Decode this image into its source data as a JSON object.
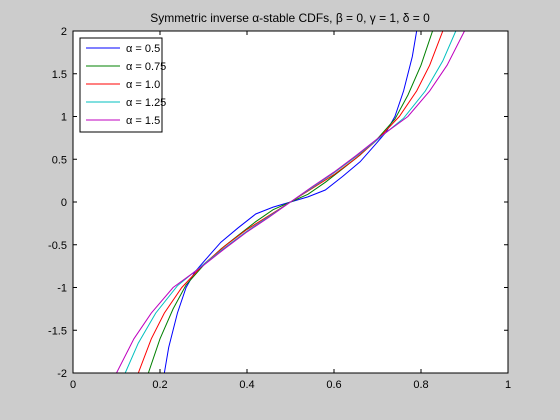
{
  "chart_data": {
    "type": "line",
    "title": "Symmetric inverse α-stable CDFs, β = 0, γ = 1, δ = 0",
    "xlabel": "",
    "ylabel": "",
    "xlim": [
      0,
      1
    ],
    "ylim": [
      -2,
      2
    ],
    "x_ticks": [
      "0",
      "0.2",
      "0.4",
      "0.6",
      "0.8",
      "1"
    ],
    "y_ticks": [
      "-2",
      "-1.5",
      "-1",
      "-0.5",
      "0",
      "0.5",
      "1",
      "1.5",
      "2"
    ],
    "x_tick_values": [
      0,
      0.2,
      0.4,
      0.6,
      0.8,
      1
    ],
    "y_tick_values": [
      -2,
      -1.5,
      -1,
      -0.5,
      0,
      0.5,
      1,
      1.5,
      2
    ],
    "grid": false,
    "legend_position": "top-left",
    "series": [
      {
        "name": "α = 0.5",
        "color": "#0000ff",
        "x": [
          0.2,
          0.22,
          0.24,
          0.26,
          0.28,
          0.3,
          0.34,
          0.38,
          0.42,
          0.46,
          0.5,
          0.54,
          0.58,
          0.62,
          0.66,
          0.7,
          0.72,
          0.74,
          0.76,
          0.78,
          0.8
        ],
        "y": [
          -2.3,
          -1.7,
          -1.3,
          -1.0,
          -0.82,
          -0.7,
          -0.47,
          -0.3,
          -0.14,
          -0.06,
          0.0,
          0.06,
          0.14,
          0.3,
          0.47,
          0.7,
          0.82,
          1.0,
          1.3,
          1.7,
          2.3
        ]
      },
      {
        "name": "α = 0.75",
        "color": "#008000",
        "x": [
          0.17,
          0.2,
          0.23,
          0.26,
          0.3,
          0.34,
          0.38,
          0.42,
          0.46,
          0.5,
          0.54,
          0.58,
          0.62,
          0.66,
          0.7,
          0.74,
          0.77,
          0.8,
          0.83
        ],
        "y": [
          -2.05,
          -1.6,
          -1.25,
          -0.97,
          -0.74,
          -0.55,
          -0.39,
          -0.23,
          -0.09,
          0.0,
          0.09,
          0.23,
          0.39,
          0.55,
          0.74,
          0.97,
          1.25,
          1.6,
          2.05
        ]
      },
      {
        "name": "α = 1.0",
        "color": "#ff0000",
        "x": [
          0.15,
          0.18,
          0.21,
          0.25,
          0.3,
          0.35,
          0.4,
          0.45,
          0.5,
          0.55,
          0.6,
          0.65,
          0.7,
          0.75,
          0.79,
          0.82,
          0.85
        ],
        "y": [
          -2.0,
          -1.6,
          -1.3,
          -1.0,
          -0.73,
          -0.51,
          -0.32,
          -0.16,
          0.0,
          0.16,
          0.32,
          0.51,
          0.73,
          1.0,
          1.3,
          1.6,
          2.0
        ]
      },
      {
        "name": "α = 1.25",
        "color": "#00bfbf",
        "x": [
          0.12,
          0.15,
          0.19,
          0.24,
          0.3,
          0.35,
          0.4,
          0.45,
          0.5,
          0.55,
          0.6,
          0.65,
          0.7,
          0.76,
          0.81,
          0.85,
          0.88
        ],
        "y": [
          -2.0,
          -1.65,
          -1.3,
          -0.98,
          -0.73,
          -0.53,
          -0.34,
          -0.17,
          0.0,
          0.17,
          0.34,
          0.53,
          0.73,
          0.98,
          1.3,
          1.65,
          2.0
        ]
      },
      {
        "name": "α = 1.5",
        "color": "#bf00bf",
        "x": [
          0.1,
          0.14,
          0.18,
          0.23,
          0.3,
          0.35,
          0.4,
          0.45,
          0.5,
          0.55,
          0.6,
          0.65,
          0.7,
          0.77,
          0.82,
          0.86,
          0.9
        ],
        "y": [
          -2.0,
          -1.6,
          -1.3,
          -1.0,
          -0.74,
          -0.54,
          -0.35,
          -0.18,
          0.0,
          0.18,
          0.35,
          0.54,
          0.74,
          1.0,
          1.3,
          1.6,
          2.0
        ]
      }
    ]
  }
}
